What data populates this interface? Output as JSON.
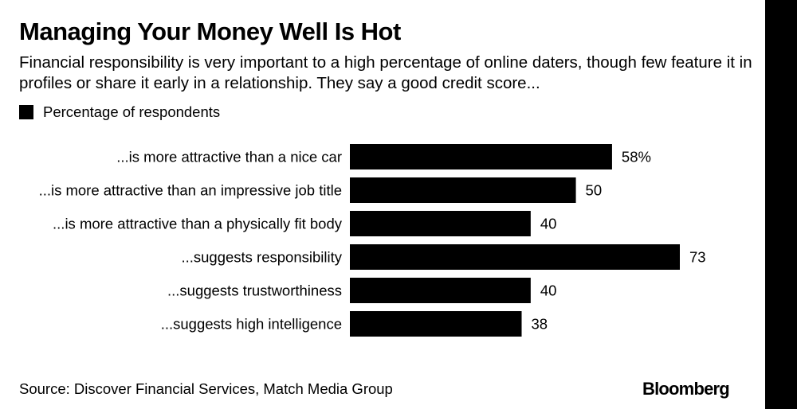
{
  "header": {
    "title": "Managing Your Money Well Is Hot",
    "subtitle": "Financial responsibility is very important to a high percentage of online daters, though few feature it in profiles or share it early in a relationship. They say a good credit score..."
  },
  "legend": {
    "label": "Percentage of respondents"
  },
  "chart_data": {
    "type": "bar",
    "orientation": "horizontal",
    "categories": [
      "...is more attractive than a nice car",
      "...is more attractive than an impressive job title",
      "...is more attractive than a physically fit body",
      "...suggests responsibility",
      "...suggests trustworthiness",
      "...suggests high intelligence"
    ],
    "series": [
      {
        "name": "Percentage of respondents",
        "values": [
          58,
          50,
          40,
          73,
          40,
          38
        ]
      }
    ],
    "value_labels": [
      "58%",
      "50",
      "40",
      "73",
      "40",
      "38"
    ],
    "xlim": [
      0,
      73
    ],
    "grid": false,
    "legend_position": "top-left",
    "bar_color": "#000000"
  },
  "footer": {
    "source": "Source: Discover Financial Services, Match Media Group",
    "brand": "Bloomberg"
  }
}
